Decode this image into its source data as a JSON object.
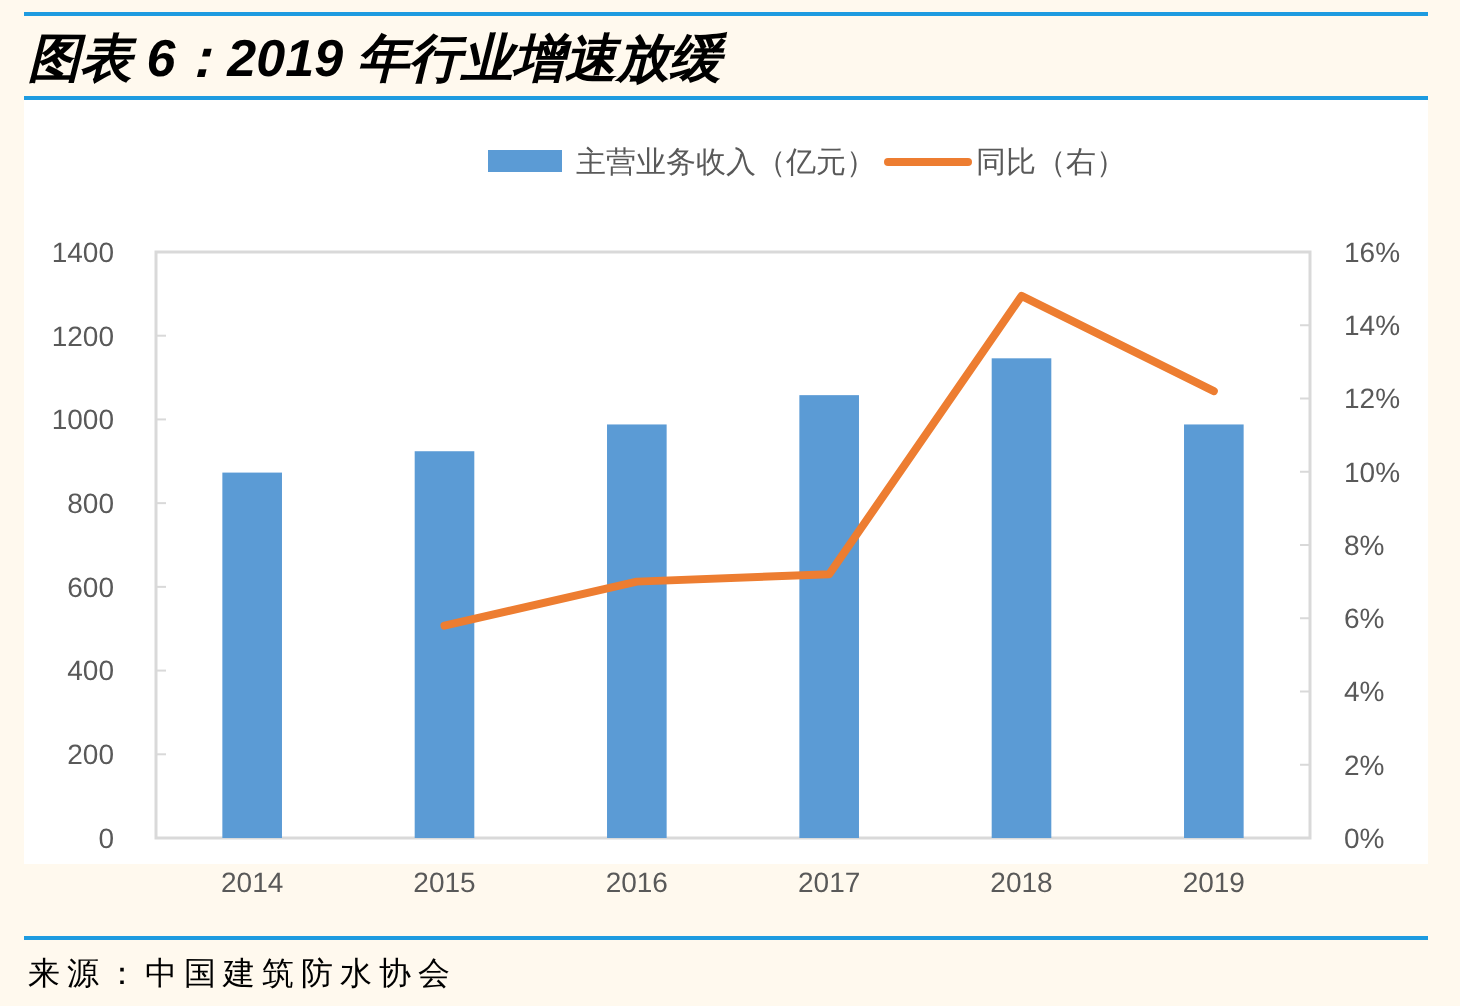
{
  "chart_data": {
    "type": "bar",
    "title": "图表 6：2019 年行业增速放缓",
    "categories": [
      "2014",
      "2015",
      "2016",
      "2017",
      "2018",
      "2019"
    ],
    "series": [
      {
        "name": "主营业务收入（亿元）",
        "color": "#5b9bd5",
        "values": [
          873,
          924,
          988,
          1058,
          1146,
          988
        ]
      },
      {
        "name": "同比（右）",
        "type": "line",
        "axis": "y2",
        "color": "#ed7d31",
        "values": [
          null,
          5.8,
          7.0,
          7.2,
          14.8,
          12.2
        ]
      }
    ],
    "ylim": [
      0,
      1400
    ],
    "yticks": [
      0,
      200,
      400,
      600,
      800,
      1000,
      1200,
      1400
    ],
    "y2lim": [
      0,
      16
    ],
    "y2ticks": [
      {
        "value": 0,
        "label": "0%"
      },
      {
        "value": 2,
        "label": "2%"
      },
      {
        "value": 4,
        "label": "4%"
      },
      {
        "value": 6,
        "label": "6%"
      },
      {
        "value": 8,
        "label": "8%"
      },
      {
        "value": 10,
        "label": "10%"
      },
      {
        "value": 12,
        "label": "12%"
      },
      {
        "value": 14,
        "label": "14%"
      },
      {
        "value": 16,
        "label": "16%"
      }
    ],
    "legend": "top",
    "annotations": [
      "来源：中国建筑防水协会"
    ]
  }
}
